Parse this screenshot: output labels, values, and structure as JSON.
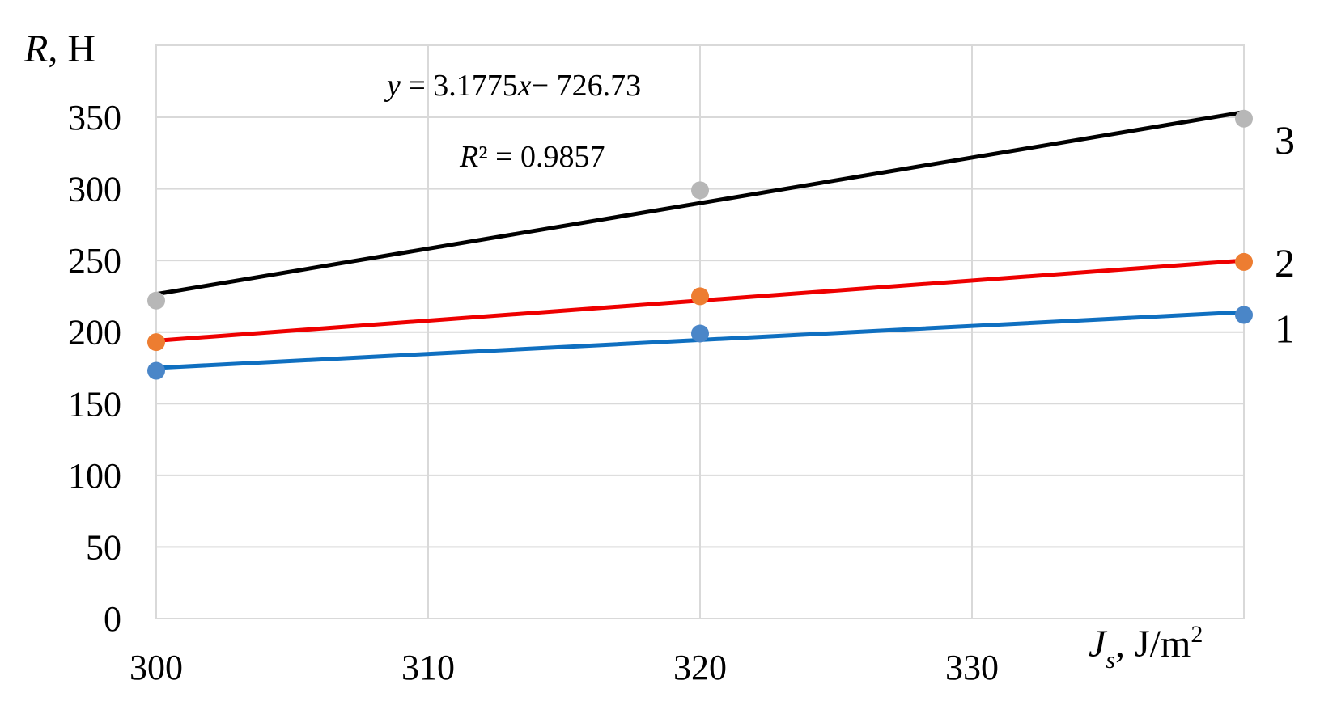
{
  "chart_data": {
    "type": "scatter",
    "x_axis": {
      "label_var": "J",
      "label_sub": "s",
      "label_unit": ", J/m",
      "label_sup": "2",
      "min": 300,
      "max": 340,
      "ticks": [
        300,
        310,
        320,
        330
      ],
      "tick_labels": [
        "300",
        "310",
        "320",
        "330"
      ]
    },
    "y_axis": {
      "label_var": "R",
      "label_unit": ", H",
      "min": 0,
      "max": 350,
      "ticks": [
        0,
        50,
        100,
        150,
        200,
        250,
        300,
        350
      ],
      "tick_labels": [
        "0",
        "50",
        "100",
        "150",
        "200",
        "250",
        "300",
        "350"
      ]
    },
    "grid": true,
    "series": [
      {
        "label": "1",
        "marker_color": "#4a86c8",
        "line_color": "#0f6fc0",
        "points": [
          {
            "x": 300,
            "y": 173
          },
          {
            "x": 320,
            "y": 199
          },
          {
            "x": 340,
            "y": 212
          }
        ],
        "trendline": {
          "x0": 300,
          "y0": 175,
          "x1": 340,
          "y1": 214
        }
      },
      {
        "label": "2",
        "marker_color": "#ed7d31",
        "line_color": "#ee0000",
        "points": [
          {
            "x": 300,
            "y": 193
          },
          {
            "x": 320,
            "y": 225
          },
          {
            "x": 340,
            "y": 249
          }
        ],
        "trendline": {
          "x0": 300,
          "y0": 194,
          "x1": 340,
          "y1": 250
        }
      },
      {
        "label": "3",
        "marker_color": "#b7b7b7",
        "line_color": "#000000",
        "points": [
          {
            "x": 300,
            "y": 222
          },
          {
            "x": 320,
            "y": 299
          },
          {
            "x": 340,
            "y": 349
          }
        ],
        "trendline": {
          "x0": 300,
          "y0": 226.5,
          "x1": 340,
          "y1": 353.6
        }
      }
    ],
    "annotations": {
      "equation": {
        "y": "y",
        "eq": " = 3.1775",
        "x": "x",
        "rest": "− 726.73"
      },
      "r_squared": {
        "R": "R",
        "rest": "² = 0.9857"
      }
    }
  }
}
